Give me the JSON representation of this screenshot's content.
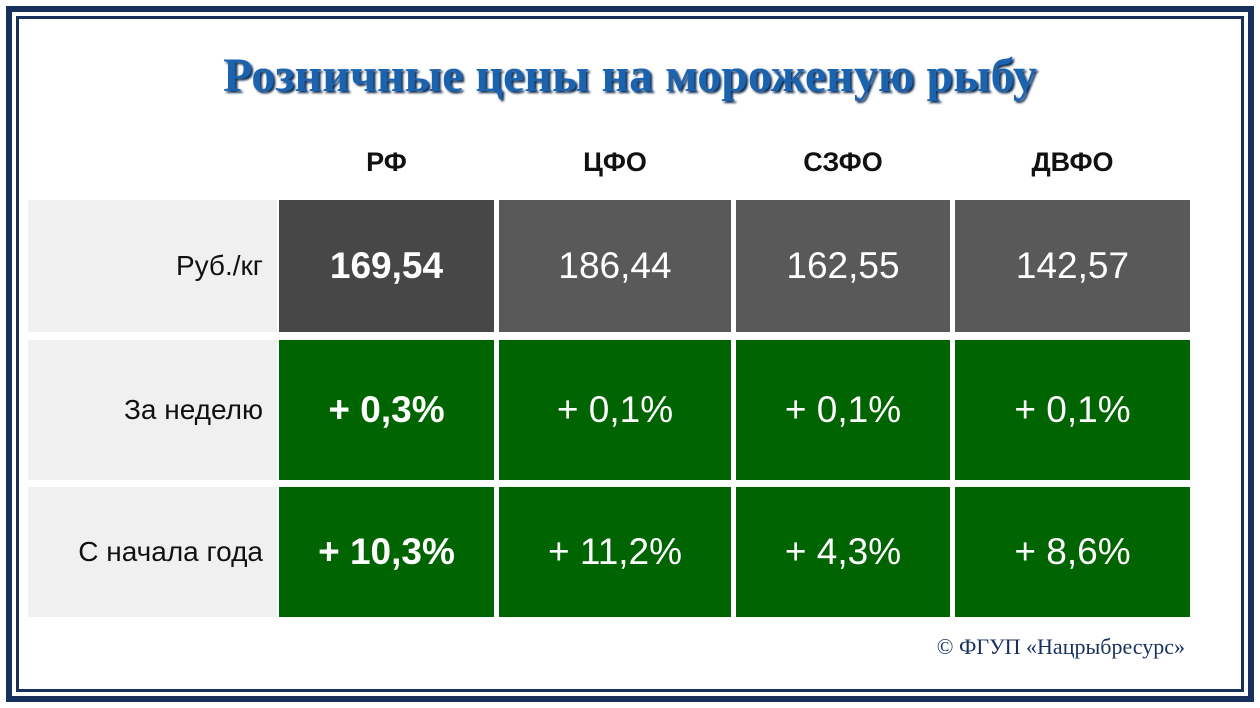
{
  "header": {
    "title": "Розничные цены на мороженую рыбу"
  },
  "table": {
    "columns": [
      "РФ",
      "ЦФО",
      "СЗФО",
      "ДВФО"
    ],
    "rows": [
      {
        "label": "Руб./кг",
        "cells": [
          "169,54",
          "186,44",
          "162,55",
          "142,57"
        ]
      },
      {
        "label": "За неделю",
        "cells": [
          "+ 0,3%",
          "+ 0,1%",
          "+ 0,1%",
          "+ 0,1%"
        ]
      },
      {
        "label": "С начала года",
        "cells": [
          "+ 10,3%",
          "+ 11,2%",
          "+ 4,3%",
          "+ 8,6%"
        ]
      }
    ]
  },
  "footer": "© ФГУП «Нацрыбресурс»"
}
